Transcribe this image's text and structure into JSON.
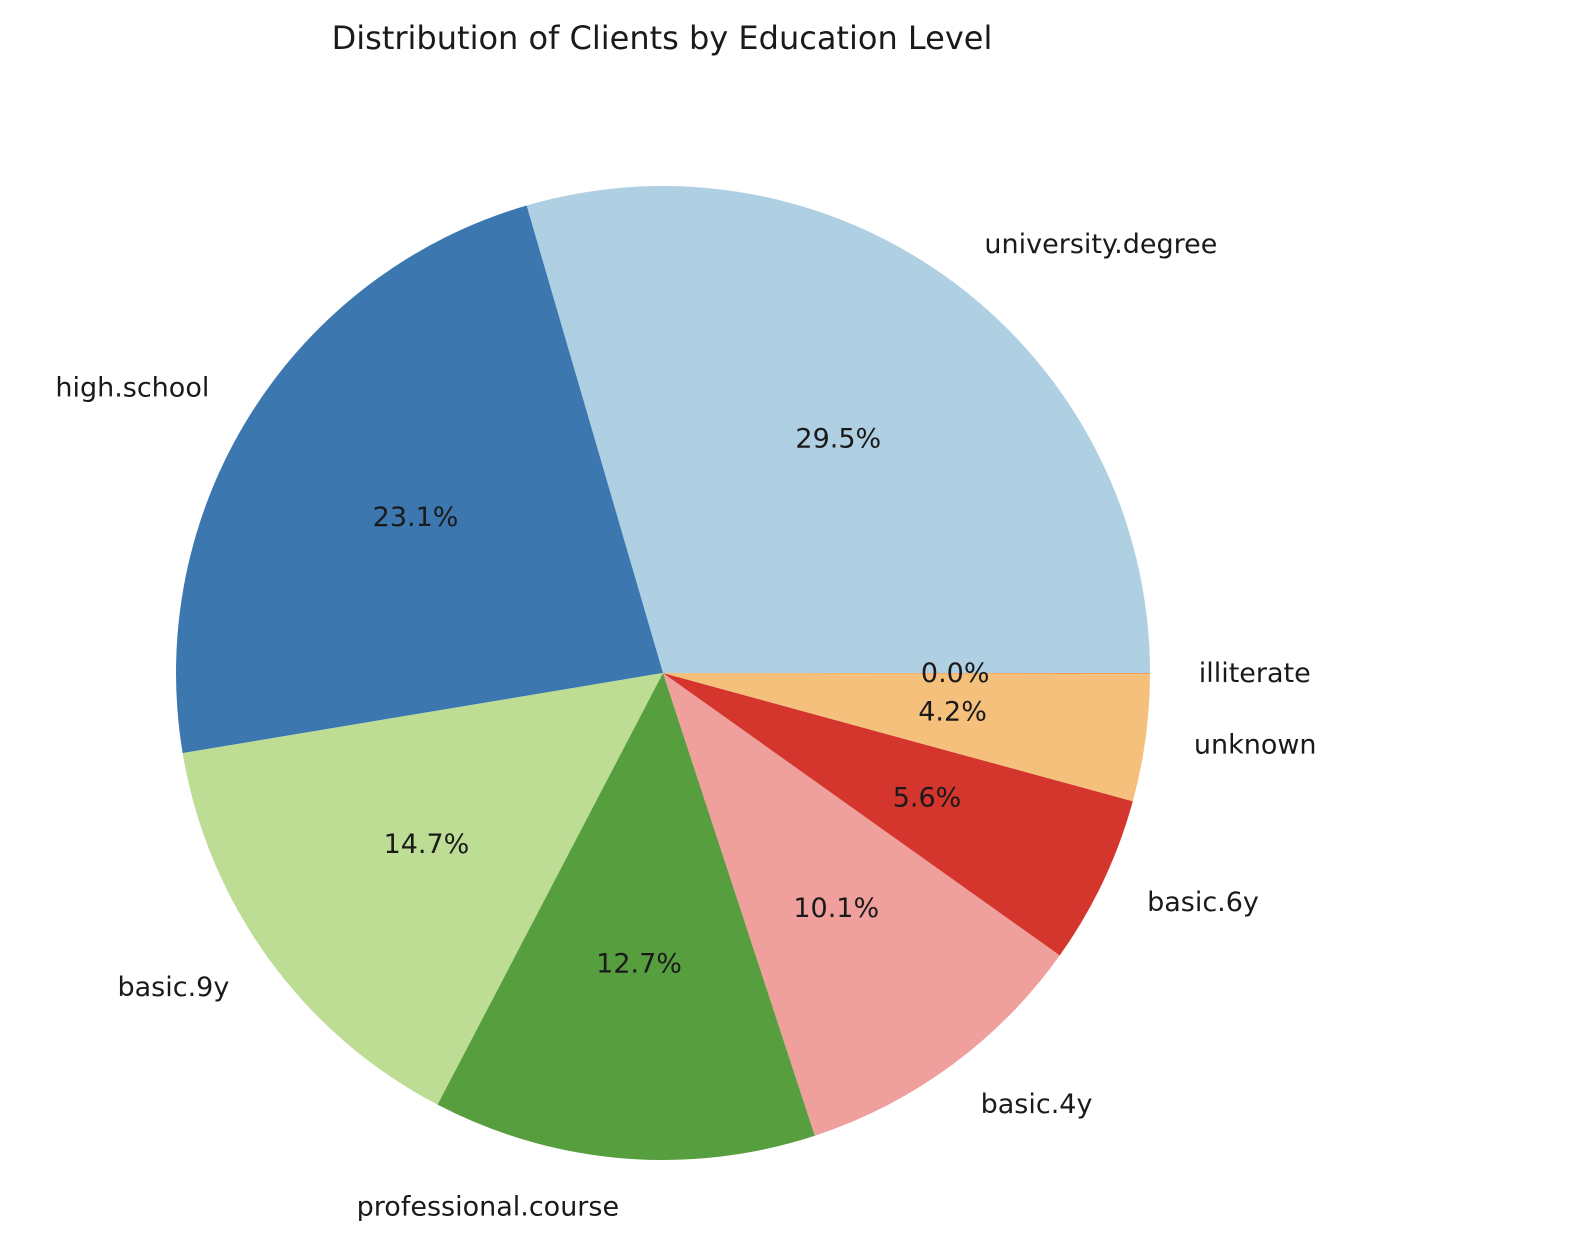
{
  "chart_data": {
    "type": "pie",
    "title": "Distribution of Clients by Education Level",
    "start_angle_deg": 0,
    "direction": "counterclockwise",
    "slices": [
      {
        "label": "university.degree",
        "value": 29.5,
        "pct_label": "29.5%",
        "color": "#afcfe3"
      },
      {
        "label": "high.school",
        "value": 23.1,
        "pct_label": "23.1%",
        "color": "#3c78af"
      },
      {
        "label": "basic.9y",
        "value": 14.7,
        "pct_label": "14.7%",
        "color": "#bedd94"
      },
      {
        "label": "professional.course",
        "value": 12.7,
        "pct_label": "12.7%",
        "color": "#579e3f"
      },
      {
        "label": "basic.4y",
        "value": 10.1,
        "pct_label": "10.1%",
        "color": "#ef9f9c"
      },
      {
        "label": "basic.6y",
        "value": 5.6,
        "pct_label": "5.6%",
        "color": "#d4352c"
      },
      {
        "label": "unknown",
        "value": 4.2,
        "pct_label": "4.2%",
        "color": "#f4c07c"
      },
      {
        "label": "illiterate",
        "value": 0.04,
        "pct_label": "0.0%",
        "color": "#f29e50"
      }
    ]
  }
}
